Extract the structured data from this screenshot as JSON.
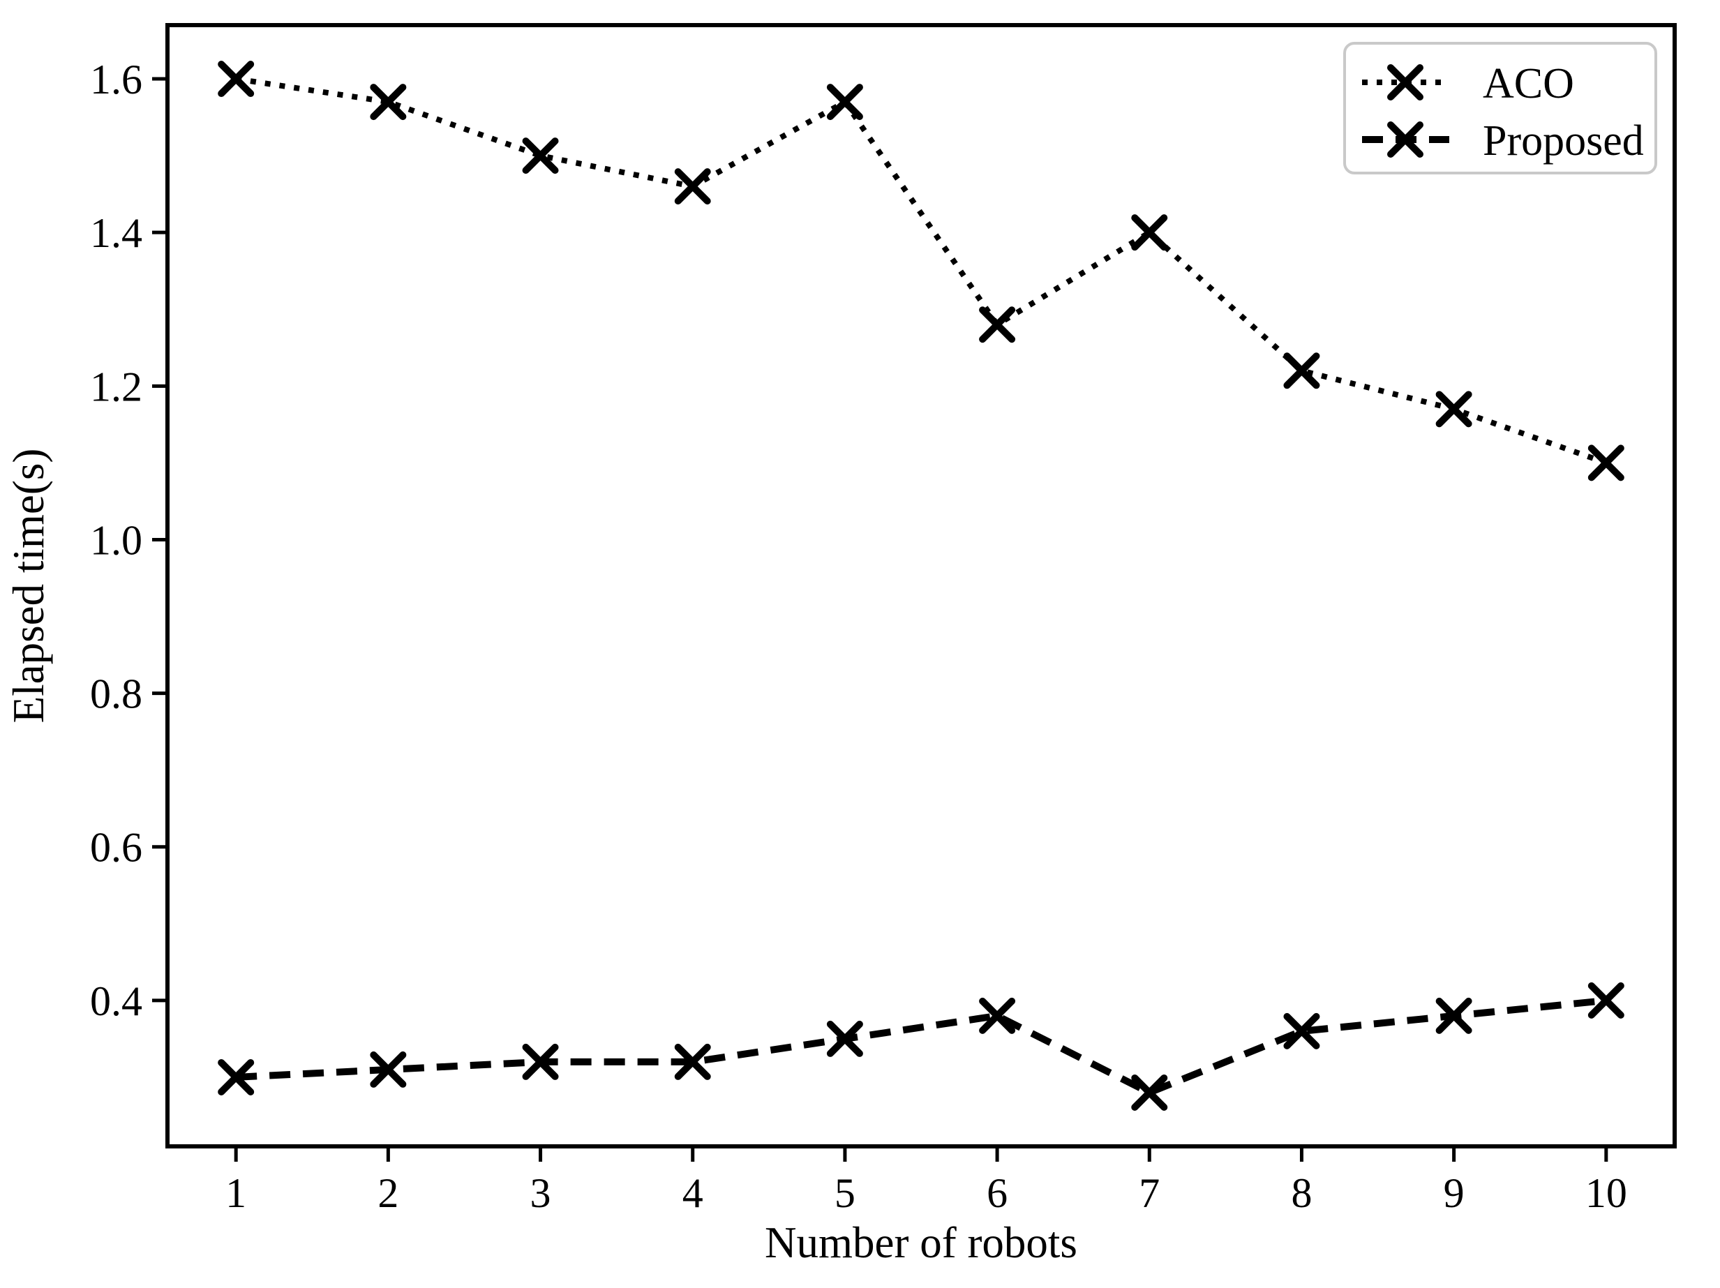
{
  "figure": {
    "background": "#ffffff",
    "foreground": "#000000"
  },
  "chart_data": {
    "type": "line",
    "title": "",
    "xlabel": "Number of robots",
    "ylabel": "Elapsed time(s)",
    "x": [
      1,
      2,
      3,
      4,
      5,
      6,
      7,
      8,
      9,
      10
    ],
    "xtick_labels": [
      "1",
      "2",
      "3",
      "4",
      "5",
      "6",
      "7",
      "8",
      "9",
      "10"
    ],
    "ytick_values": [
      0.4,
      0.6,
      0.8,
      1.0,
      1.2,
      1.4,
      1.6
    ],
    "ytick_labels": [
      "0.4",
      "0.6",
      "0.8",
      "1.0",
      "1.2",
      "1.4",
      "1.6"
    ],
    "xlim": [
      0.55,
      10.45
    ],
    "ylim": [
      0.21,
      1.67
    ],
    "grid": false,
    "axis_color": "#000000",
    "series": [
      {
        "name": "ACO",
        "linestyle": "dotted",
        "marker": "x",
        "color": "#000000",
        "values": [
          1.6,
          1.57,
          1.5,
          1.46,
          1.57,
          1.28,
          1.4,
          1.22,
          1.17,
          1.1
        ]
      },
      {
        "name": "Proposed",
        "linestyle": "dashed",
        "marker": "x",
        "color": "#000000",
        "values": [
          0.3,
          0.31,
          0.32,
          0.32,
          0.35,
          0.38,
          0.28,
          0.36,
          0.38,
          0.4
        ]
      }
    ],
    "legend": {
      "position": "upper right",
      "entries": [
        "ACO",
        "Proposed"
      ],
      "border_color": "#c9c9c9",
      "background": "#ffffff"
    }
  }
}
